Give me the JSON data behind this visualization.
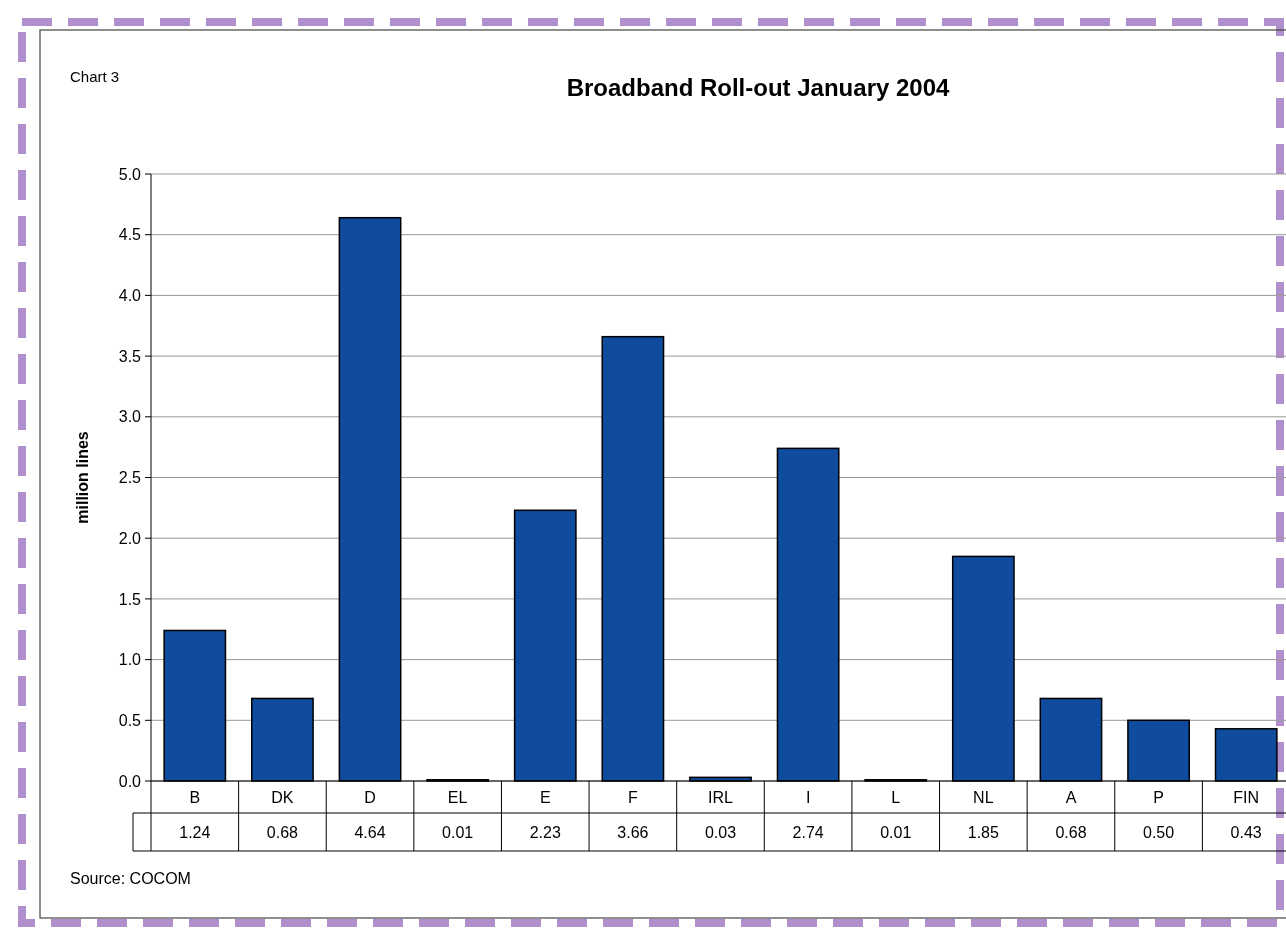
{
  "chart_data": {
    "type": "bar",
    "title": "Broadband Roll-out January 2004",
    "ylabel": "million lines",
    "categories": [
      "B",
      "DK",
      "D",
      "EL",
      "E",
      "F",
      "IRL",
      "I",
      "L",
      "NL",
      "A",
      "P",
      "FIN"
    ],
    "values": [
      1.24,
      0.68,
      4.64,
      0.01,
      2.23,
      3.66,
      0.03,
      2.74,
      0.01,
      1.85,
      0.68,
      0.5,
      0.43
    ],
    "value_labels": [
      "1.24",
      "0.68",
      "4.64",
      "0.01",
      "2.23",
      "3.66",
      "0.03",
      "2.74",
      "0.01",
      "1.85",
      "0.68",
      "0.50",
      "0.43"
    ],
    "color": "#0f4c9e",
    "ylim": [
      0,
      5
    ],
    "yticks": [
      {
        "value": 0,
        "label": "0.0"
      },
      {
        "value": 0.5,
        "label": "0.5"
      },
      {
        "value": 1,
        "label": "1.0"
      },
      {
        "value": 1.5,
        "label": "1.5"
      },
      {
        "value": 2,
        "label": "2.0"
      },
      {
        "value": 2.5,
        "label": "2.5"
      },
      {
        "value": 3,
        "label": "3.0"
      },
      {
        "value": 3.5,
        "label": "3.5"
      },
      {
        "value": 4,
        "label": "4.0"
      },
      {
        "value": 4.5,
        "label": "4.5"
      },
      {
        "value": 5,
        "label": "5.0"
      }
    ],
    "grid": "y",
    "annotations": [
      "Chart 3",
      "Source: COCOM"
    ]
  }
}
